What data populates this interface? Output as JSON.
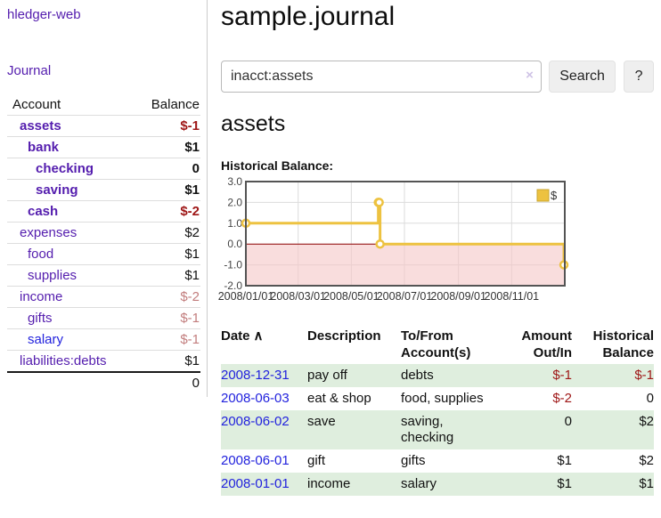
{
  "app": {
    "brand": "hledger-web",
    "nav_journal": "Journal"
  },
  "sidebar": {
    "header": {
      "account": "Account",
      "balance": "Balance"
    },
    "rows": [
      {
        "label": "assets",
        "balance": "$-1"
      },
      {
        "label": "bank",
        "balance": "$1"
      },
      {
        "label": "checking",
        "balance": "0"
      },
      {
        "label": "saving",
        "balance": "$1"
      },
      {
        "label": "cash",
        "balance": "$-2"
      },
      {
        "label": "expenses",
        "balance": "$2"
      },
      {
        "label": "food",
        "balance": "$1"
      },
      {
        "label": "supplies",
        "balance": "$1"
      },
      {
        "label": "income",
        "balance": "$-2"
      },
      {
        "label": "gifts",
        "balance": "$-1"
      },
      {
        "label": "salary",
        "balance": "$-1"
      },
      {
        "label": "liabilities:debts",
        "balance": "$1"
      }
    ],
    "total": "0"
  },
  "main": {
    "title": "sample.journal",
    "search": {
      "value": "inacct:assets",
      "clear_icon": "×",
      "search_label": "Search",
      "help_label": "?"
    },
    "account_heading": "assets",
    "chart_label": "Historical Balance:"
  },
  "chart_data": {
    "type": "line",
    "step": true,
    "title": "Historical Balance:",
    "series": [
      {
        "name": "$",
        "color": "#EDC240",
        "points": [
          [
            "2008-01-01",
            1
          ],
          [
            "2008-06-01",
            2
          ],
          [
            "2008-06-02",
            2
          ],
          [
            "2008-06-03",
            0
          ],
          [
            "2008-12-31",
            -1
          ]
        ]
      }
    ],
    "xrange": [
      "2008-01-01",
      "2009-01-01"
    ],
    "ylim": [
      -2,
      3
    ],
    "y_ticks": [
      3.0,
      2.0,
      1.0,
      0.0,
      -1.0,
      -2.0
    ],
    "x_ticks": [
      "2008/01/01",
      "2008/03/01",
      "2008/05/01",
      "2008/07/01",
      "2008/09/01",
      "2008/11/01"
    ],
    "grid": true,
    "legend_position": "top-right",
    "negative_region_color": "#f5c6c6",
    "zero_line_color": "#8b0000"
  },
  "register": {
    "sort_icon": "∧",
    "columns": [
      "Date",
      "Description",
      "To/From Account(s)",
      "Amount Out/In",
      "Historical Balance"
    ],
    "rows": [
      {
        "date": "2008-12-31",
        "description": "pay off",
        "accounts": "debts",
        "amount": "$-1",
        "balance": "$-1"
      },
      {
        "date": "2008-06-03",
        "description": "eat & shop",
        "accounts": "food, supplies",
        "amount": "$-2",
        "balance": "0"
      },
      {
        "date": "2008-06-02",
        "description": "save",
        "accounts": "saving,\nchecking",
        "amount": "0",
        "balance": "$2"
      },
      {
        "date": "2008-06-01",
        "description": "gift",
        "accounts": "gifts",
        "amount": "$1",
        "balance": "$2"
      },
      {
        "date": "2008-01-01",
        "description": "income",
        "accounts": "salary",
        "amount": "$1",
        "balance": "$1"
      }
    ]
  }
}
